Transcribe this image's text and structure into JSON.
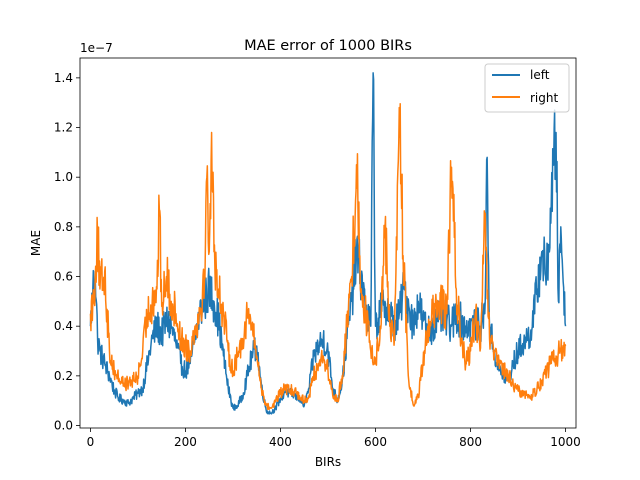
{
  "chart_data": {
    "type": "line",
    "title": "MAE error of 1000 BIRs",
    "xlabel": "BIRs",
    "ylabel": "MAE",
    "y_offset_label": "1e−7",
    "xlim": [
      -22,
      1022
    ],
    "ylim": [
      -0.01,
      1.48
    ],
    "y_scale_factor": 1e-07,
    "x_ticks": [
      0,
      200,
      400,
      600,
      800,
      1000
    ],
    "x_tick_labels": [
      "0",
      "200",
      "400",
      "600",
      "800",
      "1000"
    ],
    "y_ticks": [
      0.0,
      0.2,
      0.4,
      0.6,
      0.8,
      1.0,
      1.2,
      1.4
    ],
    "y_tick_labels": [
      "0.0",
      "0.2",
      "0.4",
      "0.6",
      "0.8",
      "1.0",
      "1.2",
      "1.4"
    ],
    "grid": false,
    "legend_position": "top-right",
    "series": [
      {
        "name": "left",
        "color": "#1f77b4",
        "anchors": [
          [
            0,
            0.4
          ],
          [
            5,
            0.55
          ],
          [
            10,
            0.62
          ],
          [
            15,
            0.35
          ],
          [
            20,
            0.3
          ],
          [
            30,
            0.25
          ],
          [
            40,
            0.2
          ],
          [
            50,
            0.14
          ],
          [
            60,
            0.11
          ],
          [
            70,
            0.1
          ],
          [
            80,
            0.09
          ],
          [
            90,
            0.11
          ],
          [
            100,
            0.13
          ],
          [
            110,
            0.15
          ],
          [
            120,
            0.25
          ],
          [
            130,
            0.35
          ],
          [
            140,
            0.4
          ],
          [
            150,
            0.37
          ],
          [
            160,
            0.42
          ],
          [
            170,
            0.4
          ],
          [
            180,
            0.33
          ],
          [
            190,
            0.25
          ],
          [
            200,
            0.22
          ],
          [
            210,
            0.25
          ],
          [
            220,
            0.35
          ],
          [
            230,
            0.45
          ],
          [
            240,
            0.5
          ],
          [
            250,
            0.55
          ],
          [
            260,
            0.5
          ],
          [
            270,
            0.42
          ],
          [
            280,
            0.28
          ],
          [
            290,
            0.15
          ],
          [
            300,
            0.07
          ],
          [
            310,
            0.08
          ],
          [
            320,
            0.12
          ],
          [
            330,
            0.2
          ],
          [
            340,
            0.28
          ],
          [
            350,
            0.32
          ],
          [
            360,
            0.16
          ],
          [
            370,
            0.06
          ],
          [
            380,
            0.05
          ],
          [
            390,
            0.07
          ],
          [
            400,
            0.11
          ],
          [
            410,
            0.14
          ],
          [
            420,
            0.13
          ],
          [
            430,
            0.12
          ],
          [
            440,
            0.11
          ],
          [
            450,
            0.08
          ],
          [
            460,
            0.15
          ],
          [
            470,
            0.28
          ],
          [
            480,
            0.32
          ],
          [
            490,
            0.35
          ],
          [
            500,
            0.3
          ],
          [
            510,
            0.15
          ],
          [
            520,
            0.1
          ],
          [
            530,
            0.18
          ],
          [
            540,
            0.35
          ],
          [
            550,
            0.5
          ],
          [
            560,
            0.7
          ],
          [
            570,
            0.6
          ],
          [
            580,
            0.45
          ],
          [
            590,
            0.4
          ],
          [
            595,
            1.42
          ],
          [
            600,
            0.4
          ],
          [
            610,
            0.45
          ],
          [
            620,
            0.5
          ],
          [
            630,
            0.45
          ],
          [
            640,
            0.4
          ],
          [
            650,
            0.45
          ],
          [
            660,
            0.55
          ],
          [
            670,
            0.48
          ],
          [
            680,
            0.4
          ],
          [
            690,
            0.5
          ],
          [
            700,
            0.42
          ],
          [
            710,
            0.38
          ],
          [
            720,
            0.4
          ],
          [
            730,
            0.42
          ],
          [
            740,
            0.44
          ],
          [
            750,
            0.42
          ],
          [
            760,
            0.4
          ],
          [
            770,
            0.45
          ],
          [
            780,
            0.42
          ],
          [
            790,
            0.4
          ],
          [
            800,
            0.4
          ],
          [
            810,
            0.41
          ],
          [
            820,
            0.4
          ],
          [
            830,
            0.45
          ],
          [
            835,
            1.08
          ],
          [
            840,
            0.4
          ],
          [
            850,
            0.3
          ],
          [
            860,
            0.22
          ],
          [
            870,
            0.2
          ],
          [
            880,
            0.18
          ],
          [
            890,
            0.25
          ],
          [
            900,
            0.3
          ],
          [
            910,
            0.33
          ],
          [
            920,
            0.35
          ],
          [
            930,
            0.4
          ],
          [
            940,
            0.55
          ],
          [
            950,
            0.7
          ],
          [
            960,
            0.6
          ],
          [
            970,
            0.9
          ],
          [
            980,
            1.18
          ],
          [
            985,
            0.5
          ],
          [
            990,
            0.8
          ],
          [
            1000,
            0.4
          ]
        ]
      },
      {
        "name": "right",
        "color": "#ff7f0e",
        "anchors": [
          [
            0,
            0.45
          ],
          [
            5,
            0.5
          ],
          [
            10,
            0.6
          ],
          [
            15,
            0.77
          ],
          [
            20,
            0.55
          ],
          [
            30,
            0.62
          ],
          [
            40,
            0.3
          ],
          [
            50,
            0.22
          ],
          [
            60,
            0.19
          ],
          [
            70,
            0.17
          ],
          [
            80,
            0.17
          ],
          [
            90,
            0.18
          ],
          [
            100,
            0.2
          ],
          [
            110,
            0.3
          ],
          [
            120,
            0.45
          ],
          [
            130,
            0.5
          ],
          [
            140,
            0.55
          ],
          [
            145,
            0.87
          ],
          [
            150,
            0.48
          ],
          [
            160,
            0.6
          ],
          [
            170,
            0.5
          ],
          [
            180,
            0.45
          ],
          [
            190,
            0.35
          ],
          [
            200,
            0.32
          ],
          [
            210,
            0.3
          ],
          [
            220,
            0.4
          ],
          [
            230,
            0.45
          ],
          [
            240,
            0.6
          ],
          [
            245,
            1.0
          ],
          [
            250,
            0.7
          ],
          [
            255,
            1.18
          ],
          [
            260,
            0.7
          ],
          [
            270,
            0.55
          ],
          [
            280,
            0.45
          ],
          [
            290,
            0.3
          ],
          [
            300,
            0.22
          ],
          [
            310,
            0.28
          ],
          [
            320,
            0.35
          ],
          [
            330,
            0.45
          ],
          [
            340,
            0.4
          ],
          [
            350,
            0.28
          ],
          [
            360,
            0.15
          ],
          [
            370,
            0.08
          ],
          [
            380,
            0.07
          ],
          [
            390,
            0.1
          ],
          [
            400,
            0.13
          ],
          [
            410,
            0.15
          ],
          [
            420,
            0.14
          ],
          [
            430,
            0.14
          ],
          [
            440,
            0.12
          ],
          [
            450,
            0.1
          ],
          [
            460,
            0.12
          ],
          [
            470,
            0.2
          ],
          [
            480,
            0.25
          ],
          [
            490,
            0.28
          ],
          [
            500,
            0.22
          ],
          [
            510,
            0.12
          ],
          [
            520,
            0.1
          ],
          [
            530,
            0.2
          ],
          [
            540,
            0.4
          ],
          [
            550,
            0.6
          ],
          [
            560,
            1.05
          ],
          [
            570,
            0.55
          ],
          [
            580,
            0.45
          ],
          [
            590,
            0.3
          ],
          [
            600,
            0.25
          ],
          [
            610,
            0.4
          ],
          [
            620,
            0.8
          ],
          [
            630,
            0.4
          ],
          [
            640,
            0.35
          ],
          [
            650,
            1.28
          ],
          [
            660,
            0.6
          ],
          [
            670,
            0.18
          ],
          [
            680,
            0.08
          ],
          [
            690,
            0.12
          ],
          [
            700,
            0.25
          ],
          [
            710,
            0.4
          ],
          [
            720,
            0.45
          ],
          [
            730,
            0.45
          ],
          [
            740,
            0.5
          ],
          [
            750,
            0.45
          ],
          [
            760,
            1.04
          ],
          [
            770,
            0.55
          ],
          [
            780,
            0.35
          ],
          [
            790,
            0.25
          ],
          [
            800,
            0.3
          ],
          [
            810,
            0.45
          ],
          [
            820,
            0.3
          ],
          [
            830,
            0.8
          ],
          [
            840,
            0.35
          ],
          [
            850,
            0.28
          ],
          [
            860,
            0.25
          ],
          [
            870,
            0.22
          ],
          [
            880,
            0.2
          ],
          [
            890,
            0.16
          ],
          [
            900,
            0.14
          ],
          [
            910,
            0.13
          ],
          [
            920,
            0.12
          ],
          [
            930,
            0.12
          ],
          [
            940,
            0.15
          ],
          [
            950,
            0.18
          ],
          [
            960,
            0.22
          ],
          [
            970,
            0.25
          ],
          [
            980,
            0.28
          ],
          [
            990,
            0.3
          ],
          [
            1000,
            0.32
          ]
        ]
      }
    ]
  }
}
